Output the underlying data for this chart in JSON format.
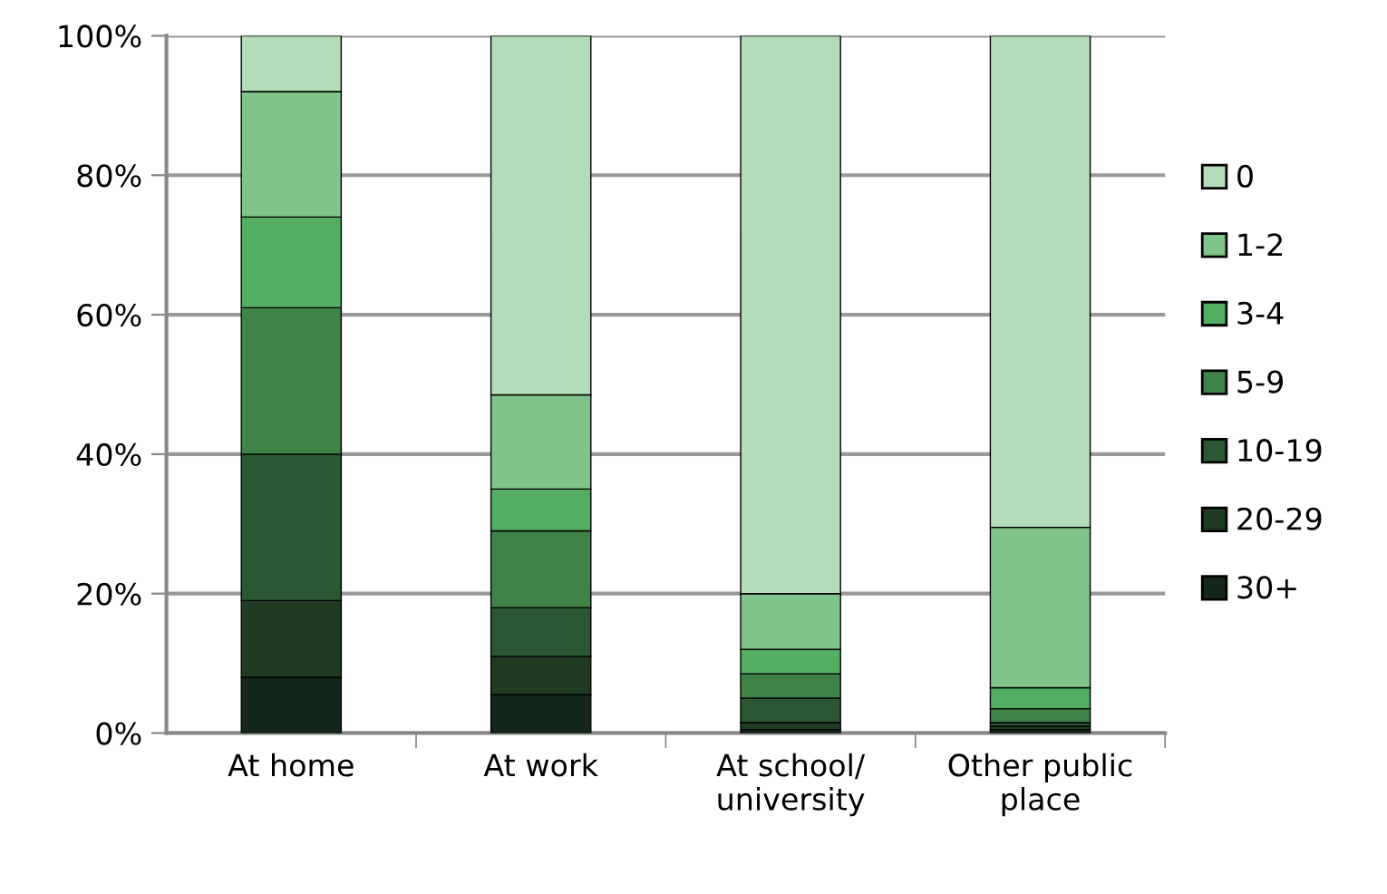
{
  "chart_data": {
    "type": "bar",
    "stacked": true,
    "categories": [
      "At home",
      "At work",
      "At school/\nuniversity",
      "Other public\nplace"
    ],
    "series": [
      {
        "name": "30+",
        "color": "#13271a",
        "values": [
          8,
          5.5,
          0.5,
          0.5
        ]
      },
      {
        "name": "20-29",
        "color": "#1f3b22",
        "values": [
          11,
          5.5,
          1,
          0.5
        ]
      },
      {
        "name": "10-19",
        "color": "#2b5733",
        "values": [
          21,
          7,
          3.5,
          0.5
        ]
      },
      {
        "name": "5-9",
        "color": "#3f8349",
        "values": [
          21,
          11,
          3.5,
          2
        ]
      },
      {
        "name": "3-4",
        "color": "#53ad62",
        "values": [
          13,
          6,
          3.5,
          3
        ]
      },
      {
        "name": "1-2",
        "color": "#80c38b",
        "values": [
          18,
          13.5,
          8,
          23
        ]
      },
      {
        "name": "0",
        "color": "#b4dcb9",
        "values": [
          8,
          51.5,
          80,
          70.5
        ]
      }
    ],
    "ylim": [
      0,
      100
    ],
    "yticks": [
      {
        "value": 0,
        "label": "0%"
      },
      {
        "value": 20,
        "label": "20%"
      },
      {
        "value": 40,
        "label": "40%"
      },
      {
        "value": 60,
        "label": "60%"
      },
      {
        "value": 80,
        "label": "80%"
      },
      {
        "value": 100,
        "label": "100%"
      }
    ],
    "grid": "y",
    "legend": "right"
  }
}
